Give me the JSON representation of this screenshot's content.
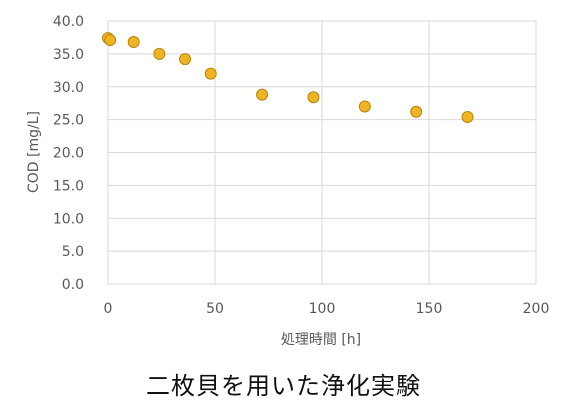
{
  "caption": "二枚貝を用いた浄化実験",
  "chart_data": {
    "type": "scatter",
    "title": "",
    "xlabel": "処理時間 [h]",
    "ylabel": "COD [mg/L]",
    "xlim": [
      0,
      200
    ],
    "ylim": [
      0,
      40
    ],
    "xticks": [
      0,
      50,
      100,
      150,
      200
    ],
    "yticks": [
      0,
      5,
      10,
      15,
      20,
      25,
      30,
      35,
      40
    ],
    "xtick_labels": [
      "0",
      "50",
      "100",
      "150",
      "200"
    ],
    "ytick_labels": [
      "0.0",
      "5.0",
      "10.0",
      "15.0",
      "20.0",
      "25.0",
      "30.0",
      "35.0",
      "40.0"
    ],
    "grid": true,
    "legend": "none",
    "marker_color": "#F0B323",
    "marker_edge": "#B8860B",
    "points": [
      {
        "x": 0,
        "y": 37.4
      },
      {
        "x": 1,
        "y": 37.1
      },
      {
        "x": 12,
        "y": 36.8
      },
      {
        "x": 24,
        "y": 35.0
      },
      {
        "x": 36,
        "y": 34.2
      },
      {
        "x": 48,
        "y": 32.0
      },
      {
        "x": 72,
        "y": 28.8
      },
      {
        "x": 96,
        "y": 28.4
      },
      {
        "x": 120,
        "y": 27.0
      },
      {
        "x": 144,
        "y": 26.2
      },
      {
        "x": 168,
        "y": 25.4
      }
    ]
  }
}
